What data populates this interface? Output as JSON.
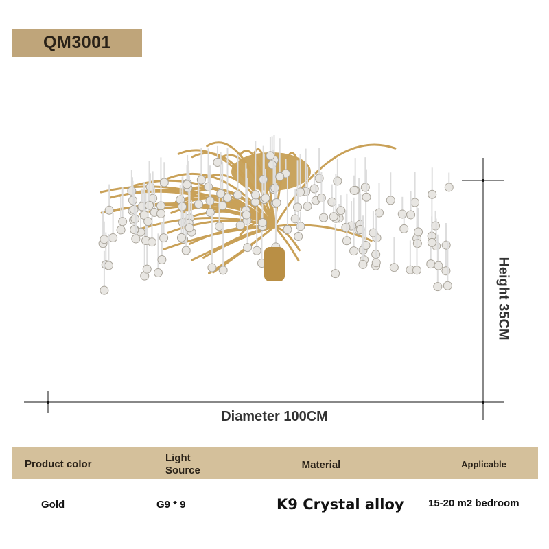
{
  "model": "QM3001",
  "dimensions": {
    "height": "Height 35CM",
    "diameter": "Diameter 100CM"
  },
  "table": {
    "headers": [
      "Product color",
      "Light Source",
      "Material",
      "Applicable"
    ],
    "row": [
      "Gold",
      "G9 * 9",
      "K9 Crystal alloy",
      "15-20 m2 bedroom"
    ]
  }
}
